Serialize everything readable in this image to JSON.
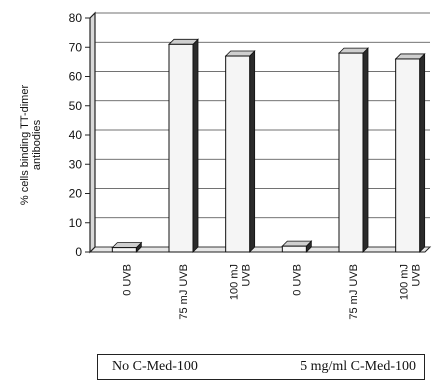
{
  "chart_data": {
    "type": "bar",
    "ylabel": "% cells binding TT-dimer antibodies",
    "xlabel": "",
    "ylim": [
      0,
      80
    ],
    "yticks": [
      0,
      10,
      20,
      30,
      40,
      50,
      60,
      70,
      80
    ],
    "grid": true,
    "legend_position": "bottom",
    "categories": [
      "0 UVB",
      "75 mJ UVB",
      "100 mJ UVB",
      "0 UVB",
      "75 mJ UVB",
      "100 mJ UVB"
    ],
    "values": [
      1.5,
      71,
      67,
      2,
      68,
      66
    ],
    "groups": [
      {
        "label": "No C-Med-100"
      },
      {
        "label": "5 mg/ml C-Med-100"
      }
    ],
    "colors": {
      "bar_face": "#f5f5f5",
      "bar_side": "#2b2b2b",
      "axis": "#222222",
      "grid": "#444444"
    }
  }
}
